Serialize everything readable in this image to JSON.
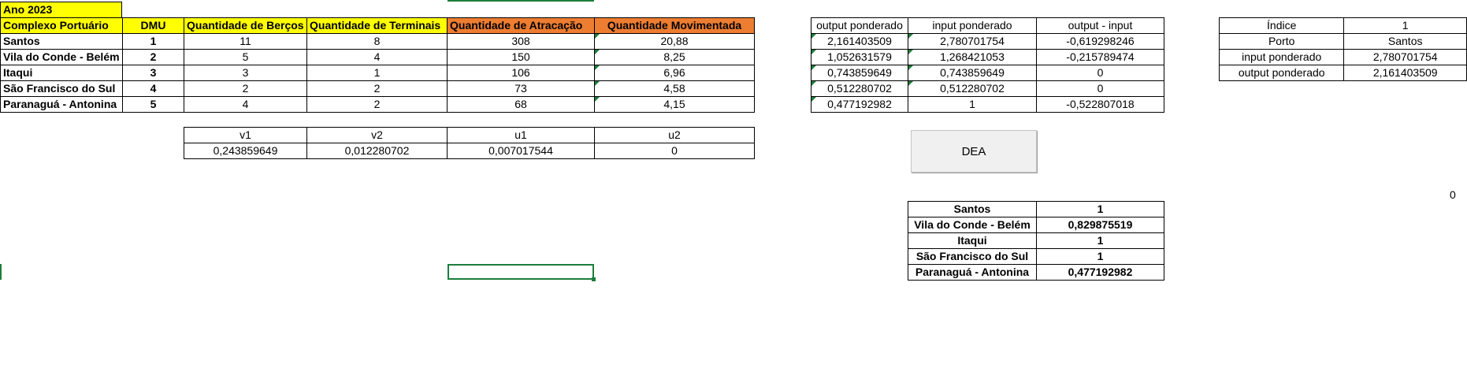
{
  "title_cell": "Ano 2023",
  "main_table": {
    "headers": [
      "Complexo Portuário",
      "DMU",
      "Quantidade de Berços",
      "Quantidade de Terminais",
      "Quantidade de Atracação",
      "Quantidade Movimentada"
    ],
    "rows": [
      [
        "Santos",
        "1",
        "11",
        "8",
        "308",
        "20,88"
      ],
      [
        "Vila do Conde - Belém",
        "2",
        "5",
        "4",
        "150",
        "8,25"
      ],
      [
        "Itaqui",
        "3",
        "3",
        "1",
        "106",
        "6,96"
      ],
      [
        "São Francisco do Sul",
        "4",
        "2",
        "2",
        "73",
        "4,58"
      ],
      [
        "Paranaguá - Antonina",
        "5",
        "4",
        "2",
        "68",
        "4,15"
      ]
    ]
  },
  "weights_table": {
    "headers": [
      "v1",
      "v2",
      "u1",
      "u2"
    ],
    "values": [
      "0,243859649",
      "0,012280702",
      "0,007017544",
      "0"
    ]
  },
  "weighted_table": {
    "headers": [
      "output ponderado",
      "input ponderado",
      "output - input"
    ],
    "rows": [
      [
        "2,161403509",
        "2,780701754",
        "-0,619298246"
      ],
      [
        "1,052631579",
        "1,268421053",
        "-0,215789474"
      ],
      [
        "0,743859649",
        "0,743859649",
        "0"
      ],
      [
        "0,512280702",
        "0,512280702",
        "0"
      ],
      [
        "0,477192982",
        "1",
        "-0,522807018"
      ]
    ]
  },
  "index_table": {
    "rows": [
      [
        "Índice",
        "1"
      ],
      [
        "Porto",
        "Santos"
      ],
      [
        "input ponderado",
        "2,780701754"
      ],
      [
        "output ponderado",
        "2,161403509"
      ]
    ]
  },
  "efficiency_table": {
    "rows": [
      [
        "Santos",
        "1"
      ],
      [
        "Vila do Conde - Belém",
        "0,829875519"
      ],
      [
        "Itaqui",
        "1"
      ],
      [
        "São Francisco do Sul",
        "1"
      ],
      [
        "Paranaguá - Antonina",
        "0,477192982"
      ]
    ]
  },
  "dea_button_label": "DEA",
  "stray_value": "0",
  "colors": {
    "yellow": "#ffff00",
    "orange": "#ed7d31",
    "selection": "#1e7d3c"
  }
}
